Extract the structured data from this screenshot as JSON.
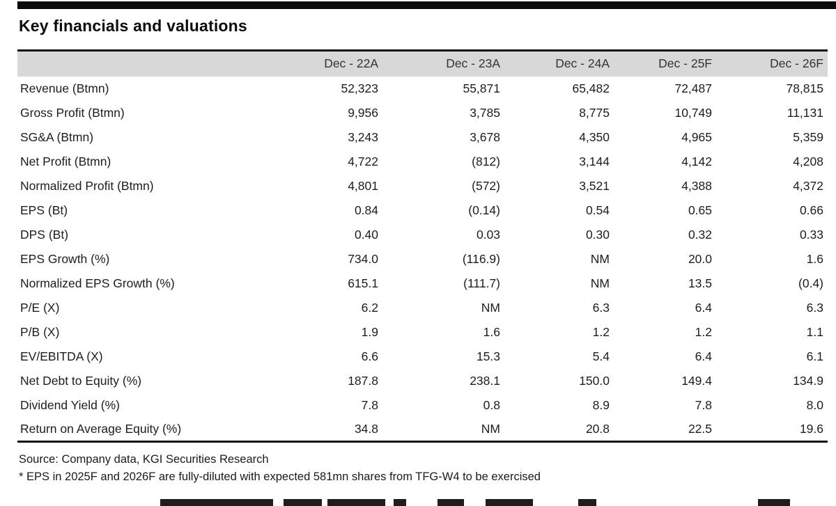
{
  "title": "Key financials and valuations",
  "table": {
    "columns": [
      "Dec - 22A",
      "Dec - 23A",
      "Dec - 24A",
      "Dec - 25F",
      "Dec - 26F"
    ],
    "rows": [
      {
        "label": "Revenue (Btmn)",
        "values": [
          "52,323",
          "55,871",
          "65,482",
          "72,487",
          "78,815"
        ]
      },
      {
        "label": "Gross Profit (Btmn)",
        "values": [
          "9,956",
          "3,785",
          "8,775",
          "10,749",
          "11,131"
        ]
      },
      {
        "label": "SG&A (Btmn)",
        "values": [
          "3,243",
          "3,678",
          "4,350",
          "4,965",
          "5,359"
        ]
      },
      {
        "label": "Net Profit (Btmn)",
        "values": [
          "4,722",
          "(812)",
          "3,144",
          "4,142",
          "4,208"
        ]
      },
      {
        "label": "Normalized Profit (Btmn)",
        "values": [
          "4,801",
          "(572)",
          "3,521",
          "4,388",
          "4,372"
        ]
      },
      {
        "label": "EPS (Bt)",
        "values": [
          "0.84",
          "(0.14)",
          "0.54",
          "0.65",
          "0.66"
        ]
      },
      {
        "label": "DPS (Bt)",
        "values": [
          "0.40",
          "0.03",
          "0.30",
          "0.32",
          "0.33"
        ]
      },
      {
        "label": "EPS Growth (%)",
        "values": [
          "734.0",
          "(116.9)",
          "NM",
          "20.0",
          "1.6"
        ]
      },
      {
        "label": "Normalized EPS Growth (%)",
        "values": [
          "615.1",
          "(111.7)",
          "NM",
          "13.5",
          "(0.4)"
        ]
      },
      {
        "label": "P/E (X)",
        "values": [
          "6.2",
          "NM",
          "6.3",
          "6.4",
          "6.3"
        ]
      },
      {
        "label": "P/B (X)",
        "values": [
          "1.9",
          "1.6",
          "1.2",
          "1.2",
          "1.1"
        ]
      },
      {
        "label": "EV/EBITDA (X)",
        "values": [
          "6.6",
          "15.3",
          "5.4",
          "6.4",
          "6.1"
        ]
      },
      {
        "label": "Net Debt to Equity (%)",
        "values": [
          "187.8",
          "238.1",
          "150.0",
          "149.4",
          "134.9"
        ]
      },
      {
        "label": "Dividend Yield (%)",
        "values": [
          "7.8",
          "0.8",
          "8.9",
          "7.8",
          "8.0"
        ]
      },
      {
        "label": "Return on Average Equity (%)",
        "values": [
          "34.8",
          "NM",
          "20.8",
          "22.5",
          "19.6"
        ]
      }
    ]
  },
  "footer": {
    "source": "Source: Company data, KGI Securities Research",
    "footnote": "* EPS in 2025F and 2026F are fully-diluted with expected 581mn shares from TFG-W4 to be exercised"
  },
  "colors": {
    "accent_bar": "#0b0b0b",
    "header_band": "#d8d8d8",
    "rule": "#101010",
    "text": "#1d1d1d"
  }
}
